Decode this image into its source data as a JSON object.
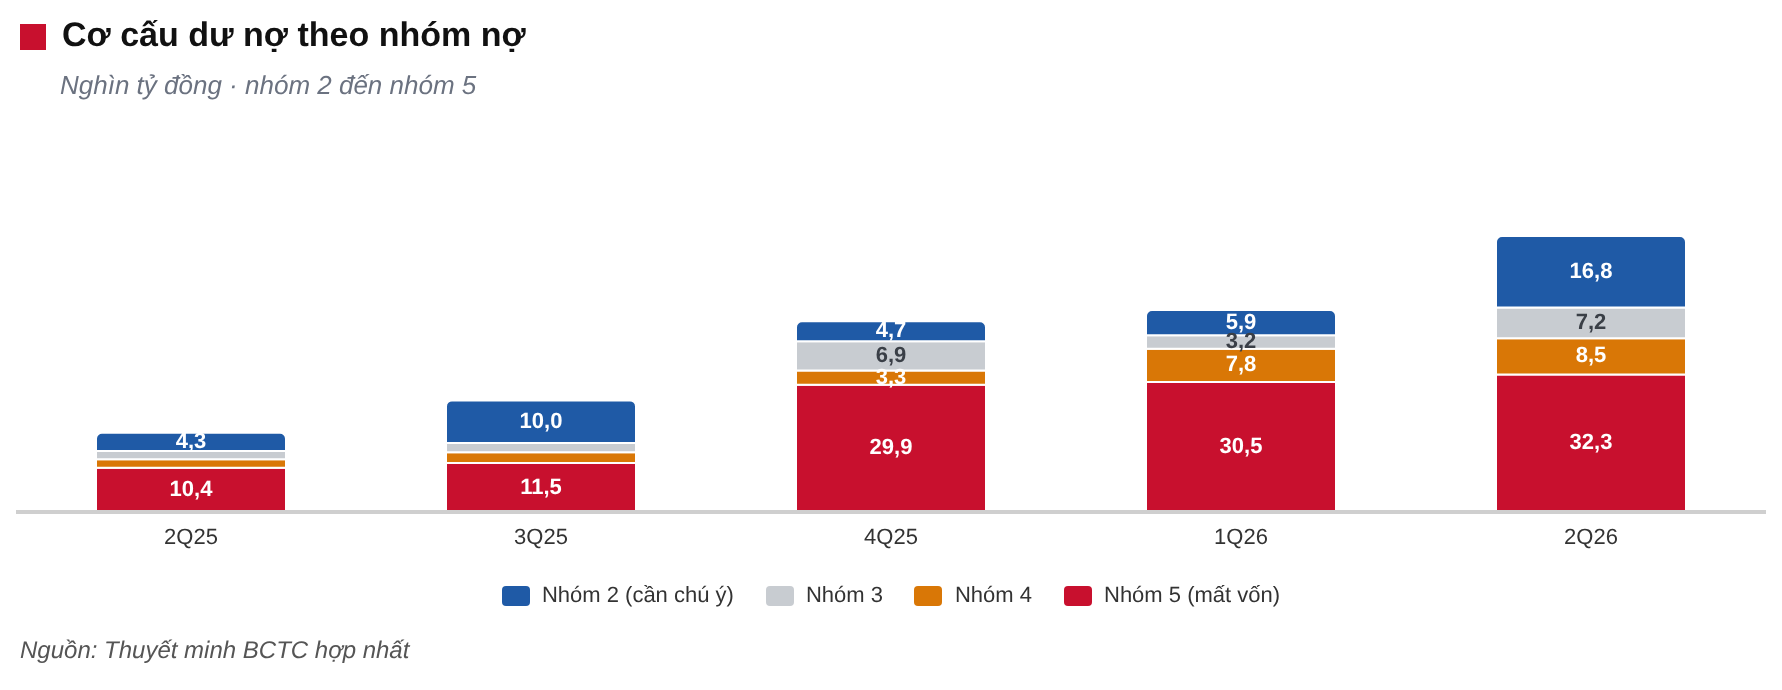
{
  "chart_data": {
    "type": "bar",
    "title": "Cơ cấu dư nợ theo nhóm nợ",
    "subtitle": "Nghìn tỷ đồng · nhóm 2 đến nhóm 5",
    "annotations": [
      "Nguồn: Thuyết minh BCTC hợp nhất"
    ],
    "categories": [
      "2Q25",
      "3Q25",
      "4Q25",
      "1Q26",
      "2Q26"
    ],
    "stacked": true,
    "legend": "bottom",
    "grid": false,
    "series": [
      {
        "name": "Nhóm 5 (mất vốn)",
        "color": "#c8102e",
        "values": [
          10.4,
          11.5,
          29.9,
          30.5,
          32.3
        ],
        "value_labels": [
          "10,4",
          "11,5",
          "29,9",
          "30,5",
          "32,3"
        ]
      },
      {
        "name": "Nhóm 4",
        "color": "#d97706",
        "values": [
          2.0,
          2.5,
          3.3,
          7.8,
          8.5
        ],
        "value_labels": [
          null,
          null,
          "3,3",
          "7,8",
          "8,5"
        ]
      },
      {
        "name": "Nhóm 3",
        "color": "#c8ccd1",
        "values": [
          1.9,
          2.2,
          6.9,
          3.2,
          7.2
        ],
        "value_labels": [
          null,
          null,
          "6,9",
          "3,2",
          "7,2"
        ]
      },
      {
        "name": "Nhóm 2 (cần chú ý)",
        "color": "#1f5aa6",
        "values": [
          4.3,
          10.0,
          4.7,
          5.9,
          16.8
        ],
        "value_labels": [
          "4,3",
          "10,0",
          "4,7",
          "5,9",
          "16,8"
        ]
      }
    ]
  }
}
